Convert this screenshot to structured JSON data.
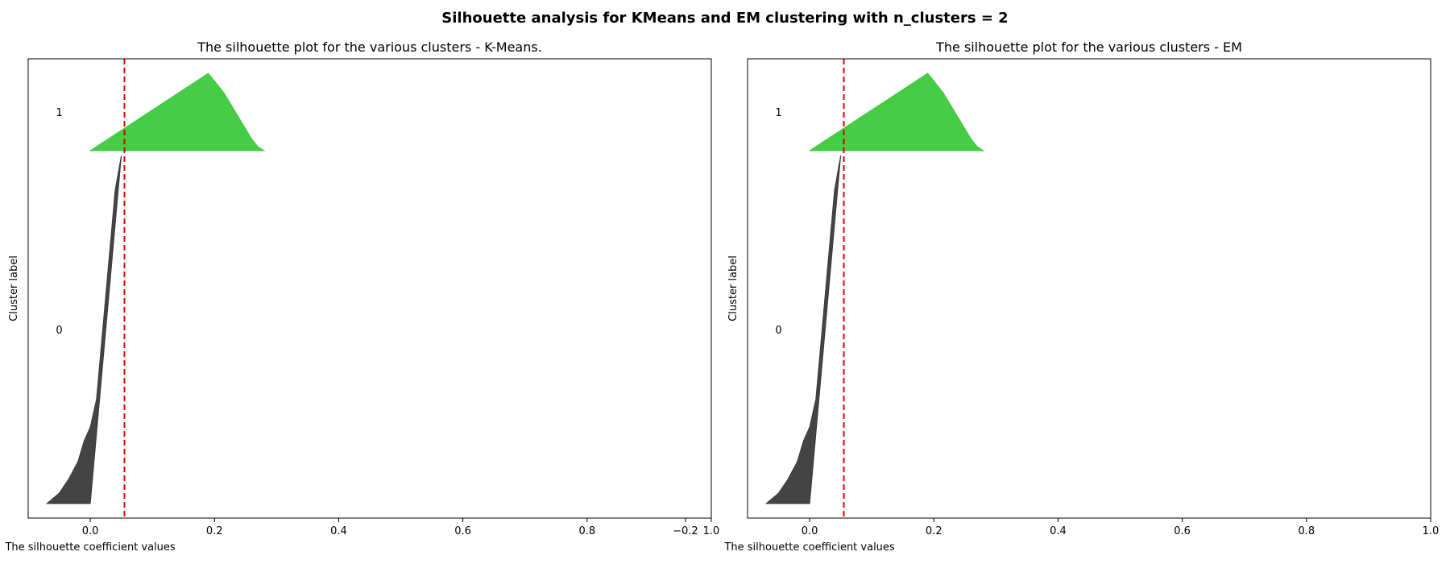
{
  "suptitle": "Silhouette analysis for KMeans and EM clustering with n_clusters = 2",
  "colors": {
    "cluster_0": "#3a3a3a",
    "cluster_1": "#3cc93c",
    "average_line": "#e00000"
  },
  "chart_data": [
    {
      "type": "area",
      "title": "The silhouette plot for the various clusters - K-Means.",
      "xlabel": "The silhouette coefficient values",
      "ylabel": "Cluster label",
      "xlim": [
        -0.1,
        1.0
      ],
      "xticks": [
        -0.2,
        0.0,
        0.2,
        0.4,
        0.6,
        0.8,
        1.0
      ],
      "tick_labels": [
        "−0.2",
        "0.0",
        "0.2",
        "0.4",
        "0.6",
        "0.8",
        "1.0"
      ],
      "average_silhouette": 0.055,
      "grid": false,
      "clusters": [
        {
          "label": "0",
          "color": "#3a3a3a",
          "y_range": [
            10,
            730
          ],
          "profile": [
            [
              0,
              0.05
            ],
            [
              0.1,
              0.04
            ],
            [
              0.2,
              0.035
            ],
            [
              0.3,
              0.03
            ],
            [
              0.4,
              0.025
            ],
            [
              0.5,
              0.02
            ],
            [
              0.6,
              0.015
            ],
            [
              0.7,
              0.01
            ],
            [
              0.78,
              0.0
            ],
            [
              0.82,
              -0.01
            ],
            [
              0.88,
              -0.02
            ],
            [
              0.93,
              -0.035
            ],
            [
              0.97,
              -0.05
            ],
            [
              1.0,
              -0.07
            ]
          ]
        },
        {
          "label": "1",
          "color": "#3cc93c",
          "y_range": [
            740,
            900
          ],
          "profile": [
            [
              0,
              0.19
            ],
            [
              0.1,
              0.2
            ],
            [
              0.25,
              0.215
            ],
            [
              0.45,
              0.23
            ],
            [
              0.65,
              0.245
            ],
            [
              0.85,
              0.26
            ],
            [
              0.95,
              0.27
            ],
            [
              1.0,
              0.28
            ]
          ]
        }
      ]
    },
    {
      "type": "area",
      "title": "The silhouette plot for the various clusters - EM",
      "xlabel": "The silhouette coefficient values",
      "ylabel": "Cluster label",
      "xlim": [
        -0.1,
        1.0
      ],
      "xticks": [
        -0.2,
        0.0,
        0.2,
        0.4,
        0.6,
        0.8,
        1.0
      ],
      "tick_labels": [
        "−0.2",
        "0.0",
        "0.2",
        "0.4",
        "0.6",
        "0.8",
        "1.0"
      ],
      "average_silhouette": 0.055,
      "grid": false,
      "clusters": [
        {
          "label": "0",
          "color": "#3a3a3a",
          "y_range": [
            10,
            730
          ],
          "profile": [
            [
              0,
              0.05
            ],
            [
              0.1,
              0.04
            ],
            [
              0.2,
              0.035
            ],
            [
              0.3,
              0.03
            ],
            [
              0.4,
              0.025
            ],
            [
              0.5,
              0.02
            ],
            [
              0.6,
              0.015
            ],
            [
              0.7,
              0.01
            ],
            [
              0.78,
              0.0
            ],
            [
              0.82,
              -0.01
            ],
            [
              0.88,
              -0.02
            ],
            [
              0.93,
              -0.035
            ],
            [
              0.97,
              -0.05
            ],
            [
              1.0,
              -0.07
            ]
          ]
        },
        {
          "label": "1",
          "color": "#3cc93c",
          "y_range": [
            740,
            900
          ],
          "profile": [
            [
              0,
              0.19
            ],
            [
              0.1,
              0.2
            ],
            [
              0.25,
              0.215
            ],
            [
              0.45,
              0.23
            ],
            [
              0.65,
              0.245
            ],
            [
              0.85,
              0.26
            ],
            [
              0.95,
              0.27
            ],
            [
              1.0,
              0.28
            ]
          ]
        }
      ]
    }
  ]
}
